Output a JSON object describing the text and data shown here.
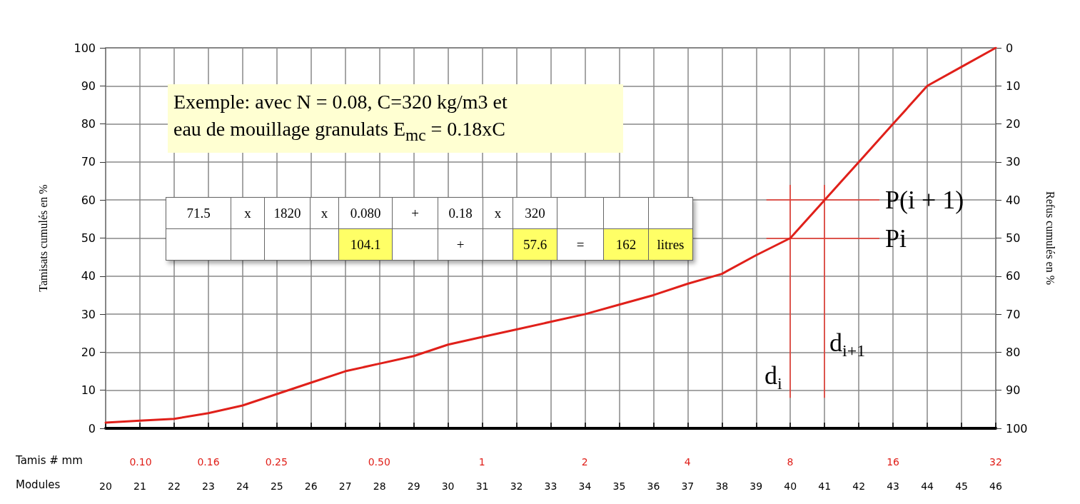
{
  "chart_data": {
    "type": "line",
    "xlabel": "Modules",
    "ylabel": "Tamisats cumulés en %",
    "y2label": "Refus cumulés en %",
    "x2label": "Tamis # mm",
    "x": [
      20,
      21,
      22,
      23,
      24,
      25,
      26,
      27,
      28,
      29,
      30,
      31,
      32,
      33,
      34,
      35,
      36,
      37,
      38,
      39,
      40,
      41,
      42,
      43,
      44,
      45,
      46
    ],
    "series": [
      {
        "color": "#e0201a",
        "values": [
          1.5,
          2,
          2.5,
          4,
          6,
          9,
          12,
          15,
          17,
          19,
          22,
          24,
          26,
          28,
          30,
          32.5,
          35,
          38,
          40.6,
          45.5,
          50,
          60,
          70,
          80,
          90,
          95,
          100
        ]
      }
    ],
    "xlim": [
      20,
      46
    ],
    "xticks": [
      20,
      21,
      22,
      23,
      24,
      25,
      26,
      27,
      28,
      29,
      30,
      31,
      32,
      33,
      34,
      35,
      36,
      37,
      38,
      39,
      40,
      41,
      42,
      43,
      44,
      45,
      46
    ],
    "x2lim": [
      0.079,
      32
    ],
    "x2ticks": [
      {
        "value": 0.1,
        "label": "0.10"
      },
      {
        "value": 0.158,
        "label": "0.16"
      },
      0.25,
      {
        "value": 0.5,
        "label": "0.50"
      },
      1,
      2,
      4,
      8,
      16,
      32
    ],
    "ylim": [
      0,
      100
    ],
    "yticks": [
      0,
      10,
      20,
      30,
      40,
      50,
      60,
      70,
      80,
      90,
      100
    ],
    "y2lim": [
      100,
      0
    ],
    "y2ticks": [
      0,
      10,
      20,
      30,
      40,
      50,
      60,
      70,
      80,
      90,
      100
    ],
    "ref_lines": [
      {
        "axis": "y",
        "value": 60,
        "label": "P(i + 1)",
        "color": "#ee3a30"
      },
      {
        "axis": "y",
        "value": 50,
        "label": "Pi",
        "color": "#ee3a30"
      },
      {
        "axis": "x",
        "value": 40,
        "label": "d$_{i}$",
        "color": "#ee3a30"
      },
      {
        "axis": "x",
        "value": 41,
        "label": "d$_{i+1}$",
        "color": "#ee3a30"
      }
    ],
    "annotations": [
      "Exemple: avec N = 0.08, C=320 kg/m3 et eau de mouillage granulats E$_{mc}$ = 0.18xC",
      "71.5 x 1820 x 0.080 + 0.18 x 320",
      "104.1 + 57.6 = 162 litres"
    ],
    "log": "x2",
    "grid": true,
    "marker": "none",
    "line_style": "solid"
  }
}
